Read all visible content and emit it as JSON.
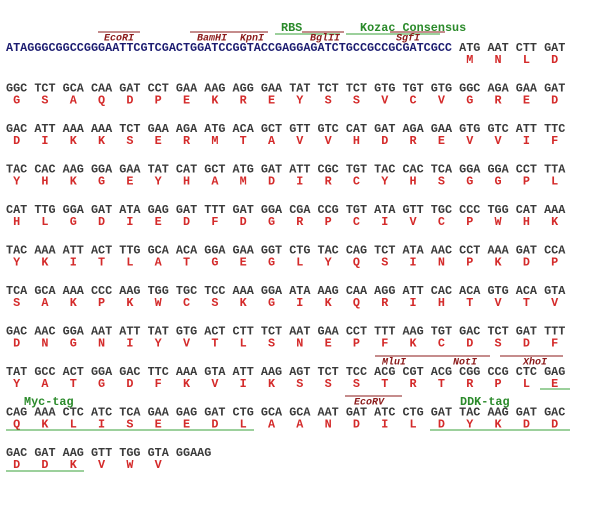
{
  "top_tags": [
    "RBS",
    "Kozac Consensus"
  ],
  "top_sites": [
    "EcoRI",
    "BamHI",
    "KpnI",
    "BglII",
    "SgfI"
  ],
  "leader": "ATAGGGCGGCCGGGAATTCGTCGACTGGATCCGGTACCGAGGAGATCTGCCGCCGCGATCGCC",
  "rows": [
    {
      "codons": [
        "ATG",
        "AAT",
        "CTT",
        "GAT"
      ],
      "amino_acids": [
        "M",
        "N",
        "L",
        "D"
      ]
    },
    {
      "codons": [
        "GGC",
        "TCT",
        "GCA",
        "CAA",
        "GAT",
        "CCT",
        "GAA",
        "AAG",
        "AGG",
        "GAA",
        "TAT",
        "TCT",
        "TCT",
        "GTG",
        "TGT",
        "GTG",
        "GGC",
        "AGA",
        "GAA",
        "GAT"
      ],
      "amino_acids": [
        "G",
        "S",
        "A",
        "Q",
        "D",
        "P",
        "E",
        "K",
        "R",
        "E",
        "Y",
        "S",
        "S",
        "V",
        "C",
        "V",
        "G",
        "R",
        "E",
        "D"
      ]
    },
    {
      "codons": [
        "GAC",
        "ATT",
        "AAA",
        "AAA",
        "TCT",
        "GAA",
        "AGA",
        "ATG",
        "ACA",
        "GCT",
        "GTT",
        "GTC",
        "CAT",
        "GAT",
        "AGA",
        "GAA",
        "GTG",
        "GTC",
        "ATT",
        "TTC"
      ],
      "amino_acids": [
        "D",
        "I",
        "K",
        "K",
        "S",
        "E",
        "R",
        "M",
        "T",
        "A",
        "V",
        "V",
        "H",
        "D",
        "R",
        "E",
        "V",
        "V",
        "I",
        "F"
      ]
    },
    {
      "codons": [
        "TAC",
        "CAC",
        "AAG",
        "GGA",
        "GAA",
        "TAT",
        "CAT",
        "GCT",
        "ATG",
        "GAT",
        "ATT",
        "CGC",
        "TGT",
        "TAC",
        "CAC",
        "TCA",
        "GGA",
        "GGA",
        "CCT",
        "TTA"
      ],
      "amino_acids": [
        "Y",
        "H",
        "K",
        "G",
        "E",
        "Y",
        "H",
        "A",
        "M",
        "D",
        "I",
        "R",
        "C",
        "Y",
        "H",
        "S",
        "G",
        "G",
        "P",
        "L"
      ]
    },
    {
      "codons": [
        "CAT",
        "TTG",
        "GGA",
        "GAT",
        "ATA",
        "GAG",
        "GAT",
        "TTT",
        "GAT",
        "GGA",
        "CGA",
        "CCG",
        "TGT",
        "ATA",
        "GTT",
        "TGC",
        "CCC",
        "TGG",
        "CAT",
        "AAA"
      ],
      "amino_acids": [
        "H",
        "L",
        "G",
        "D",
        "I",
        "E",
        "D",
        "F",
        "D",
        "G",
        "R",
        "P",
        "C",
        "I",
        "V",
        "C",
        "P",
        "W",
        "H",
        "K"
      ]
    },
    {
      "codons": [
        "TAC",
        "AAA",
        "ATT",
        "ACT",
        "TTG",
        "GCA",
        "ACA",
        "GGA",
        "GAA",
        "GGT",
        "CTG",
        "TAC",
        "CAG",
        "TCT",
        "ATA",
        "AAC",
        "CCT",
        "AAA",
        "GAT",
        "CCA"
      ],
      "amino_acids": [
        "Y",
        "K",
        "I",
        "T",
        "L",
        "A",
        "T",
        "G",
        "E",
        "G",
        "L",
        "Y",
        "Q",
        "S",
        "I",
        "N",
        "P",
        "K",
        "D",
        "P"
      ]
    },
    {
      "codons": [
        "TCA",
        "GCA",
        "AAA",
        "CCC",
        "AAG",
        "TGG",
        "TGC",
        "TCC",
        "AAA",
        "GGA",
        "ATA",
        "AAG",
        "CAA",
        "AGG",
        "ATT",
        "CAC",
        "ACA",
        "GTG",
        "ACA",
        "GTA"
      ],
      "amino_acids": [
        "S",
        "A",
        "K",
        "P",
        "K",
        "W",
        "C",
        "S",
        "K",
        "G",
        "I",
        "K",
        "Q",
        "R",
        "I",
        "H",
        "T",
        "V",
        "T",
        "V"
      ]
    },
    {
      "codons": [
        "GAC",
        "AAC",
        "GGA",
        "AAT",
        "ATT",
        "TAT",
        "GTG",
        "ACT",
        "CTT",
        "TCT",
        "AAT",
        "GAA",
        "CCT",
        "TTT",
        "AAG",
        "TGT",
        "GAC",
        "TCT",
        "GAT",
        "TTT"
      ],
      "amino_acids": [
        "D",
        "N",
        "G",
        "N",
        "I",
        "Y",
        "V",
        "T",
        "L",
        "S",
        "N",
        "E",
        "P",
        "F",
        "K",
        "C",
        "D",
        "S",
        "D",
        "F"
      ]
    },
    {
      "codons": [
        "TAT",
        "GCC",
        "ACT",
        "GGA",
        "GAC",
        "TTC",
        "AAA",
        "GTA",
        "ATT",
        "AAG",
        "AGT",
        "TCT",
        "TCC",
        "ACG",
        "CGT",
        "ACG",
        "CGG",
        "CCG",
        "CTC",
        "GAG"
      ],
      "amino_acids": [
        "Y",
        "A",
        "T",
        "G",
        "D",
        "F",
        "K",
        "V",
        "I",
        "K",
        "S",
        "S",
        "S",
        "T",
        "R",
        "T",
        "R",
        "P",
        "L",
        "E"
      ]
    },
    {
      "codons": [
        "CAG",
        "AAA",
        "CTC",
        "ATC",
        "TCA",
        "GAA",
        "GAG",
        "GAT",
        "CTG",
        "GCA",
        "GCA",
        "AAT",
        "GAT",
        "ATC",
        "CTG",
        "GAT",
        "TAC",
        "AAG",
        "GAT",
        "GAC"
      ],
      "amino_acids": [
        "Q",
        "K",
        "L",
        "I",
        "S",
        "E",
        "E",
        "D",
        "L",
        "A",
        "A",
        "N",
        "D",
        "I",
        "L",
        "D",
        "Y",
        "K",
        "D",
        "D"
      ]
    },
    {
      "codons": [
        "GAC",
        "GAT",
        "AAG",
        "GTT",
        "TGG",
        "GTA",
        "GGAAG"
      ],
      "amino_acids": [
        "D",
        "D",
        "K",
        "V",
        "W",
        "V"
      ]
    }
  ],
  "row_sites": [
    "MluI",
    "NotI",
    "XhoI",
    "EcoRV"
  ],
  "row_tags": [
    "Myc-tag",
    "DDK-tag"
  ]
}
